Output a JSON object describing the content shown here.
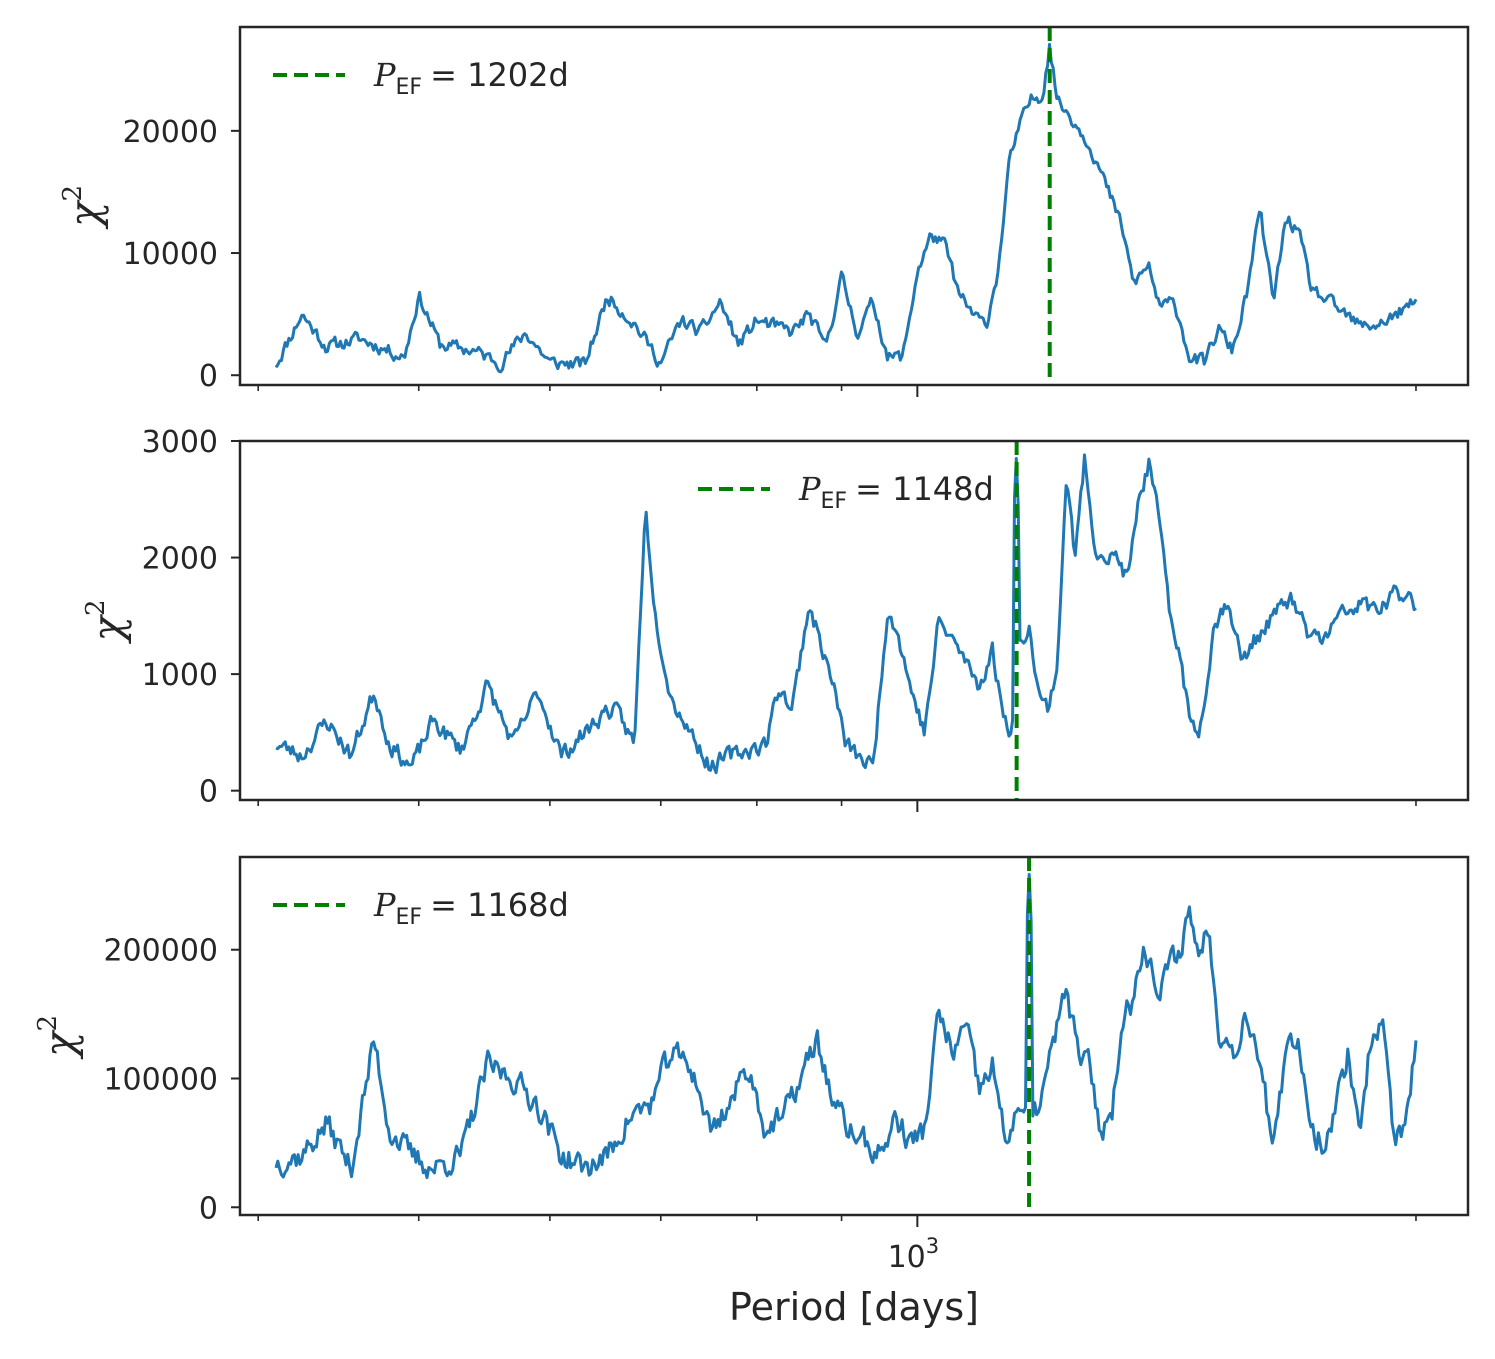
{
  "figure": {
    "xlabel": "Period [days]",
    "x_major_tick_label": "10",
    "x_major_tick_exponent": "3",
    "line_color": "#1f77b4",
    "marker_color": "#008000",
    "frame_color": "#262626"
  },
  "chart_data": [
    {
      "type": "line",
      "ylabel": "χ",
      "ylabel_exponent": "2",
      "xscale": "log",
      "xlim": [
        390,
        2150
      ],
      "ylim": [
        -800,
        28500
      ],
      "yticks": [
        0,
        10000,
        20000
      ],
      "ytick_labels": [
        "0",
        "10000",
        "20000"
      ],
      "legend": {
        "symbol": "P",
        "subscript": "EF",
        "text": "= 1202d",
        "placement": "top-left"
      },
      "vline_period": 1202,
      "series": {
        "name": "chi2",
        "x_range": [
          410,
          2000
        ],
        "anchors": [
          [
            410,
            900
          ],
          [
            425,
            5000
          ],
          [
            440,
            2300
          ],
          [
            460,
            3000
          ],
          [
            490,
            1500
          ],
          [
            500,
            6500
          ],
          [
            515,
            2500
          ],
          [
            540,
            2000
          ],
          [
            560,
            1000
          ],
          [
            580,
            3500
          ],
          [
            600,
            1000
          ],
          [
            630,
            900
          ],
          [
            650,
            6500
          ],
          [
            675,
            4200
          ],
          [
            700,
            1000
          ],
          [
            720,
            4500
          ],
          [
            740,
            3500
          ],
          [
            760,
            6000
          ],
          [
            780,
            2500
          ],
          [
            800,
            4500
          ],
          [
            820,
            4000
          ],
          [
            840,
            3500
          ],
          [
            860,
            5000
          ],
          [
            880,
            2300
          ],
          [
            900,
            8000
          ],
          [
            920,
            3500
          ],
          [
            940,
            6000
          ],
          [
            960,
            1500
          ],
          [
            980,
            1500
          ],
          [
            1000,
            8500
          ],
          [
            1020,
            11500
          ],
          [
            1040,
            10500
          ],
          [
            1060,
            6500
          ],
          [
            1080,
            5000
          ],
          [
            1100,
            4000
          ],
          [
            1120,
            9000
          ],
          [
            1135,
            17000
          ],
          [
            1150,
            20000
          ],
          [
            1170,
            22500
          ],
          [
            1190,
            23000
          ],
          [
            1202,
            27000
          ],
          [
            1215,
            22500
          ],
          [
            1240,
            21000
          ],
          [
            1270,
            19000
          ],
          [
            1300,
            15500
          ],
          [
            1330,
            12000
          ],
          [
            1350,
            7500
          ],
          [
            1380,
            9000
          ],
          [
            1400,
            5500
          ],
          [
            1430,
            6000
          ],
          [
            1460,
            1500
          ],
          [
            1490,
            1000
          ],
          [
            1520,
            3800
          ],
          [
            1550,
            2000
          ],
          [
            1580,
            6500
          ],
          [
            1610,
            13500
          ],
          [
            1640,
            6000
          ],
          [
            1670,
            13000
          ],
          [
            1700,
            11500
          ],
          [
            1730,
            7000
          ],
          [
            1770,
            6000
          ],
          [
            1810,
            5000
          ],
          [
            1850,
            4000
          ],
          [
            1900,
            4200
          ],
          [
            1950,
            5000
          ],
          [
            2000,
            6000
          ]
        ],
        "noise": 900,
        "seed": 11
      }
    },
    {
      "type": "line",
      "ylabel": "χ",
      "ylabel_exponent": "2",
      "xscale": "log",
      "xlim": [
        390,
        2150
      ],
      "ylim": [
        -80,
        3000
      ],
      "yticks": [
        0,
        1000,
        2000,
        3000
      ],
      "ytick_labels": [
        "0",
        "1000",
        "2000",
        "3000"
      ],
      "legend": {
        "symbol": "P",
        "subscript": "EF",
        "text": "= 1148d",
        "placement": "top-center"
      },
      "vline_period": 1148,
      "series": {
        "name": "chi2",
        "x_range": [
          410,
          2000
        ],
        "anchors": [
          [
            410,
            400
          ],
          [
            425,
            300
          ],
          [
            440,
            600
          ],
          [
            455,
            300
          ],
          [
            470,
            850
          ],
          [
            480,
            400
          ],
          [
            495,
            200
          ],
          [
            510,
            600
          ],
          [
            530,
            350
          ],
          [
            550,
            900
          ],
          [
            570,
            400
          ],
          [
            590,
            850
          ],
          [
            610,
            300
          ],
          [
            630,
            500
          ],
          [
            650,
            700
          ],
          [
            660,
            650
          ],
          [
            675,
            400
          ],
          [
            685,
            2450
          ],
          [
            695,
            1500
          ],
          [
            710,
            800
          ],
          [
            730,
            500
          ],
          [
            750,
            200
          ],
          [
            770,
            300
          ],
          [
            790,
            350
          ],
          [
            810,
            400
          ],
          [
            825,
            900
          ],
          [
            840,
            700
          ],
          [
            860,
            1600
          ],
          [
            875,
            1250
          ],
          [
            890,
            900
          ],
          [
            905,
            400
          ],
          [
            920,
            300
          ],
          [
            940,
            200
          ],
          [
            960,
            1600
          ],
          [
            975,
            1300
          ],
          [
            990,
            900
          ],
          [
            1010,
            500
          ],
          [
            1030,
            1450
          ],
          [
            1050,
            1300
          ],
          [
            1070,
            1100
          ],
          [
            1090,
            900
          ],
          [
            1110,
            1200
          ],
          [
            1125,
            700
          ],
          [
            1140,
            500
          ],
          [
            1155,
            1300
          ],
          [
            1170,
            1400
          ],
          [
            1185,
            800
          ],
          [
            1200,
            700
          ],
          [
            1215,
            1100
          ],
          [
            1230,
            2700
          ],
          [
            1245,
            2000
          ],
          [
            1262,
            2850
          ],
          [
            1280,
            2100
          ],
          [
            1300,
            2000
          ],
          [
            1320,
            2000
          ],
          [
            1340,
            1800
          ],
          [
            1360,
            2500
          ],
          [
            1380,
            2800
          ],
          [
            1400,
            2300
          ],
          [
            1420,
            1500
          ],
          [
            1440,
            1200
          ],
          [
            1460,
            600
          ],
          [
            1480,
            500
          ],
          [
            1510,
            1400
          ],
          [
            1540,
            1650
          ],
          [
            1570,
            1100
          ],
          [
            1600,
            1300
          ],
          [
            1640,
            1500
          ],
          [
            1680,
            1650
          ],
          [
            1720,
            1350
          ],
          [
            1760,
            1300
          ],
          [
            1800,
            1500
          ],
          [
            1850,
            1600
          ],
          [
            1900,
            1550
          ],
          [
            1950,
            1700
          ],
          [
            2000,
            1600
          ]
        ],
        "noise": 120,
        "seed": 23
      }
    },
    {
      "type": "line",
      "ylabel": "χ",
      "ylabel_exponent": "2",
      "xscale": "log",
      "xlim": [
        390,
        2150
      ],
      "ylim": [
        -6000,
        272000
      ],
      "yticks": [
        0,
        100000,
        200000
      ],
      "ytick_labels": [
        "0",
        "100000",
        "200000"
      ],
      "legend": {
        "symbol": "P",
        "subscript": "EF",
        "text": "= 1168d",
        "placement": "top-left"
      },
      "vline_period": 1168,
      "series": {
        "name": "chi2",
        "x_range": [
          410,
          2000
        ],
        "anchors": [
          [
            410,
            35000
          ],
          [
            425,
            40000
          ],
          [
            440,
            65000
          ],
          [
            455,
            30000
          ],
          [
            470,
            130000
          ],
          [
            480,
            60000
          ],
          [
            495,
            40000
          ],
          [
            510,
            30000
          ],
          [
            530,
            40000
          ],
          [
            550,
            110000
          ],
          [
            570,
            100000
          ],
          [
            590,
            80000
          ],
          [
            610,
            40000
          ],
          [
            630,
            30000
          ],
          [
            650,
            40000
          ],
          [
            670,
            70000
          ],
          [
            690,
            80000
          ],
          [
            710,
            120000
          ],
          [
            730,
            110000
          ],
          [
            750,
            60000
          ],
          [
            770,
            80000
          ],
          [
            790,
            110000
          ],
          [
            810,
            60000
          ],
          [
            830,
            70000
          ],
          [
            850,
            100000
          ],
          [
            870,
            130000
          ],
          [
            890,
            80000
          ],
          [
            910,
            60000
          ],
          [
            930,
            50000
          ],
          [
            950,
            40000
          ],
          [
            970,
            70000
          ],
          [
            990,
            50000
          ],
          [
            1010,
            60000
          ],
          [
            1030,
            150000
          ],
          [
            1050,
            120000
          ],
          [
            1070,
            140000
          ],
          [
            1090,
            90000
          ],
          [
            1110,
            110000
          ],
          [
            1130,
            50000
          ],
          [
            1150,
            80000
          ],
          [
            1170,
            60000
          ],
          [
            1190,
            90000
          ],
          [
            1210,
            130000
          ],
          [
            1230,
            170000
          ],
          [
            1250,
            120000
          ],
          [
            1270,
            110000
          ],
          [
            1290,
            60000
          ],
          [
            1310,
            70000
          ],
          [
            1330,
            150000
          ],
          [
            1350,
            160000
          ],
          [
            1370,
            210000
          ],
          [
            1385,
            185000
          ],
          [
            1400,
            160000
          ],
          [
            1420,
            190000
          ],
          [
            1440,
            200000
          ],
          [
            1460,
            230000
          ],
          [
            1480,
            195000
          ],
          [
            1500,
            220000
          ],
          [
            1520,
            140000
          ],
          [
            1550,
            120000
          ],
          [
            1580,
            150000
          ],
          [
            1610,
            120000
          ],
          [
            1640,
            40000
          ],
          [
            1670,
            120000
          ],
          [
            1700,
            130000
          ],
          [
            1730,
            60000
          ],
          [
            1760,
            50000
          ],
          [
            1790,
            80000
          ],
          [
            1820,
            120000
          ],
          [
            1850,
            60000
          ],
          [
            1880,
            135000
          ],
          [
            1910,
            140000
          ],
          [
            1940,
            55000
          ],
          [
            1970,
            60000
          ],
          [
            2000,
            125000
          ]
        ],
        "noise": 16000,
        "seed": 37
      }
    }
  ]
}
